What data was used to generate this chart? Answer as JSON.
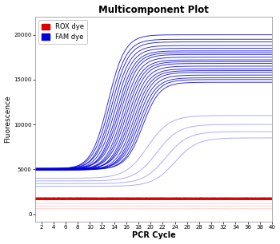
{
  "title": "Multicomponent Plot",
  "xlabel": "PCR Cycle",
  "ylabel": "Fluorescence",
  "x_min": 1,
  "x_max": 40,
  "y_min": -800,
  "y_max": 22000,
  "x_ticks": [
    2,
    4,
    6,
    8,
    10,
    12,
    14,
    16,
    18,
    20,
    22,
    24,
    26,
    28,
    30,
    32,
    34,
    36,
    38,
    40
  ],
  "y_ticks": [
    0,
    5000,
    10000,
    15000,
    20000
  ],
  "background_color": "#ffffff",
  "plot_bg_color": "#ffffff",
  "fam_color_dark": "#0000dd",
  "fam_color_light": "#8888ff",
  "rox_color_dark": "#dd0000",
  "rox_color_light": "#ffbbbb",
  "n_fam_dark": 20,
  "n_fam_light": 4,
  "n_rox_dark": 6,
  "n_rox_light": 3,
  "fam_plateau_dark": [
    20000,
    19500,
    19200,
    18800,
    18500,
    18200,
    18000,
    17800,
    17500,
    17200,
    17000,
    16800,
    16500,
    16200,
    16000,
    15800,
    15500,
    15200,
    15000,
    14700
  ],
  "fam_plateau_light": [
    11000,
    10000,
    9200,
    8500
  ],
  "fam_inflection_dark": [
    13.0,
    13.3,
    13.6,
    13.9,
    14.2,
    14.5,
    14.8,
    15.1,
    15.4,
    15.7,
    16.0,
    16.3,
    16.6,
    16.9,
    17.2,
    17.5,
    17.8,
    18.1,
    18.4,
    18.7
  ],
  "fam_inflection_light": [
    19.5,
    21.0,
    22.5,
    24.0
  ],
  "fam_baseline_dark": [
    5000,
    5050,
    4950,
    5100,
    5000,
    4900,
    5050,
    5100,
    4950,
    5000,
    5050,
    4900,
    5000,
    5100,
    4950,
    4900,
    5000,
    5050,
    4950,
    5000
  ],
  "fam_baseline_light": [
    4000,
    3700,
    3400,
    3100
  ],
  "rox_level_dark": [
    1800,
    1750,
    1700,
    1680,
    1660,
    1640
  ],
  "rox_level_light": [
    1200,
    900,
    600
  ]
}
